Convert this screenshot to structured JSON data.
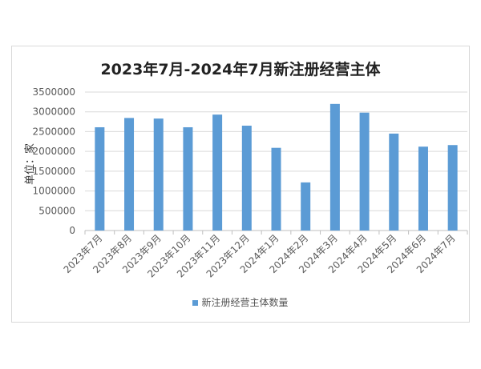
{
  "chart_data": {
    "type": "bar",
    "title": "2023年7月-2024年7月新注册经营主体",
    "ylabel": "单位：家",
    "xlabel": "",
    "categories": [
      "2023年7月",
      "2023年8月",
      "2023年9月",
      "2023年10月",
      "2023年11月",
      "2023年12月",
      "2024年1月",
      "2024年2月",
      "2024年3月",
      "2024年4月",
      "2024年5月",
      "2024年6月",
      "2024年7月"
    ],
    "series": [
      {
        "name": "新注册经营主体数量",
        "values": [
          2610000,
          2845000,
          2830000,
          2610000,
          2930000,
          2650000,
          2090000,
          1216000,
          3200000,
          2980000,
          2450000,
          2120000,
          2160000
        ],
        "color": "#5b9bd5"
      }
    ],
    "ylim": [
      0,
      3500000
    ],
    "yticks": [
      "0",
      "500000",
      "1000000",
      "1500000",
      "2000000",
      "2500000",
      "3000000",
      "3500000"
    ],
    "grid": true,
    "legend": "bottom"
  }
}
